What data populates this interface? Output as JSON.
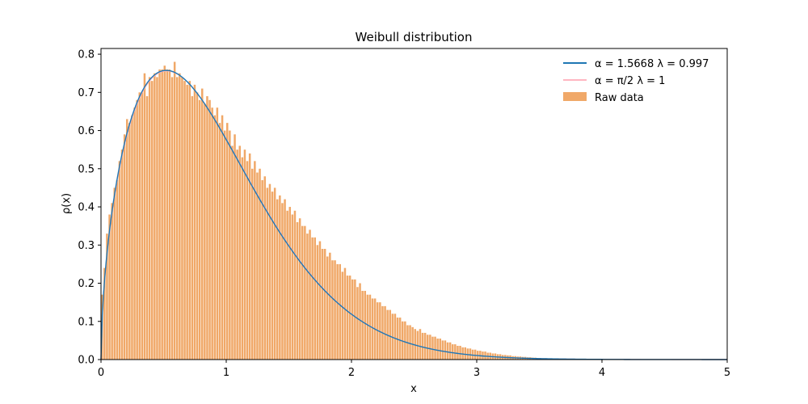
{
  "chart_data": {
    "type": "bar",
    "title": "Weibull distribution",
    "xlabel": "x",
    "ylabel": "ρ(x)",
    "xlim": [
      0,
      5
    ],
    "ylim": [
      0,
      0.815
    ],
    "xticks": [
      "0",
      "1",
      "2",
      "3",
      "4",
      "5"
    ],
    "yticks": [
      "0.0",
      "0.1",
      "0.2",
      "0.3",
      "0.4",
      "0.5",
      "0.6",
      "0.7",
      "0.8"
    ],
    "legend_position": "top-right",
    "grid": false,
    "histogram": {
      "name": "Raw data",
      "color": "#f0a868",
      "bin_width": 0.02,
      "bin_start": 0.0,
      "values": [
        0.17,
        0.24,
        0.33,
        0.38,
        0.41,
        0.45,
        0.47,
        0.52,
        0.55,
        0.59,
        0.63,
        0.62,
        0.64,
        0.66,
        0.68,
        0.7,
        0.7,
        0.75,
        0.69,
        0.74,
        0.73,
        0.75,
        0.74,
        0.76,
        0.76,
        0.77,
        0.76,
        0.76,
        0.74,
        0.78,
        0.74,
        0.75,
        0.74,
        0.73,
        0.72,
        0.73,
        0.69,
        0.72,
        0.7,
        0.68,
        0.71,
        0.67,
        0.69,
        0.68,
        0.66,
        0.64,
        0.66,
        0.62,
        0.64,
        0.6,
        0.62,
        0.6,
        0.56,
        0.59,
        0.55,
        0.56,
        0.53,
        0.55,
        0.52,
        0.54,
        0.5,
        0.52,
        0.49,
        0.5,
        0.47,
        0.48,
        0.45,
        0.46,
        0.44,
        0.45,
        0.42,
        0.43,
        0.41,
        0.42,
        0.39,
        0.4,
        0.38,
        0.39,
        0.36,
        0.37,
        0.35,
        0.35,
        0.33,
        0.34,
        0.32,
        0.32,
        0.3,
        0.31,
        0.29,
        0.29,
        0.27,
        0.28,
        0.26,
        0.26,
        0.25,
        0.25,
        0.23,
        0.24,
        0.22,
        0.22,
        0.21,
        0.21,
        0.19,
        0.2,
        0.18,
        0.18,
        0.17,
        0.17,
        0.16,
        0.16,
        0.15,
        0.15,
        0.14,
        0.14,
        0.13,
        0.13,
        0.12,
        0.12,
        0.11,
        0.11,
        0.1,
        0.1,
        0.09,
        0.09,
        0.085,
        0.08,
        0.075,
        0.08,
        0.07,
        0.07,
        0.065,
        0.065,
        0.06,
        0.06,
        0.055,
        0.055,
        0.05,
        0.05,
        0.045,
        0.045,
        0.04,
        0.04,
        0.036,
        0.036,
        0.032,
        0.032,
        0.029,
        0.029,
        0.026,
        0.026,
        0.023,
        0.023,
        0.021,
        0.021,
        0.018,
        0.018,
        0.016,
        0.016,
        0.014,
        0.014,
        0.012,
        0.012,
        0.011,
        0.011,
        0.009,
        0.009,
        0.008,
        0.008,
        0.007,
        0.007,
        0.006,
        0.006,
        0.005,
        0.005,
        0.004,
        0.004,
        0.0035,
        0.0035,
        0.003,
        0.003,
        0.0025,
        0.0025,
        0.002,
        0.002,
        0.0018,
        0.0016,
        0.0014,
        0.0012,
        0.001,
        0.001,
        0.0008,
        0.0008,
        0.0007,
        0.0006,
        0.0005,
        0.0005,
        0.0004,
        0.0004,
        0.0003,
        0.0003,
        0.0003,
        0.0002,
        0.0002,
        0.0002
      ]
    },
    "series": [
      {
        "name": "α = 1.5668 λ = 0.997",
        "color": "#1f77b4",
        "alpha": 1.5668,
        "lambda": 0.997
      },
      {
        "name": "α = π/2 λ = 1",
        "color": "#ffb6c1",
        "alpha": 1.5707963,
        "lambda": 1.0
      }
    ]
  }
}
